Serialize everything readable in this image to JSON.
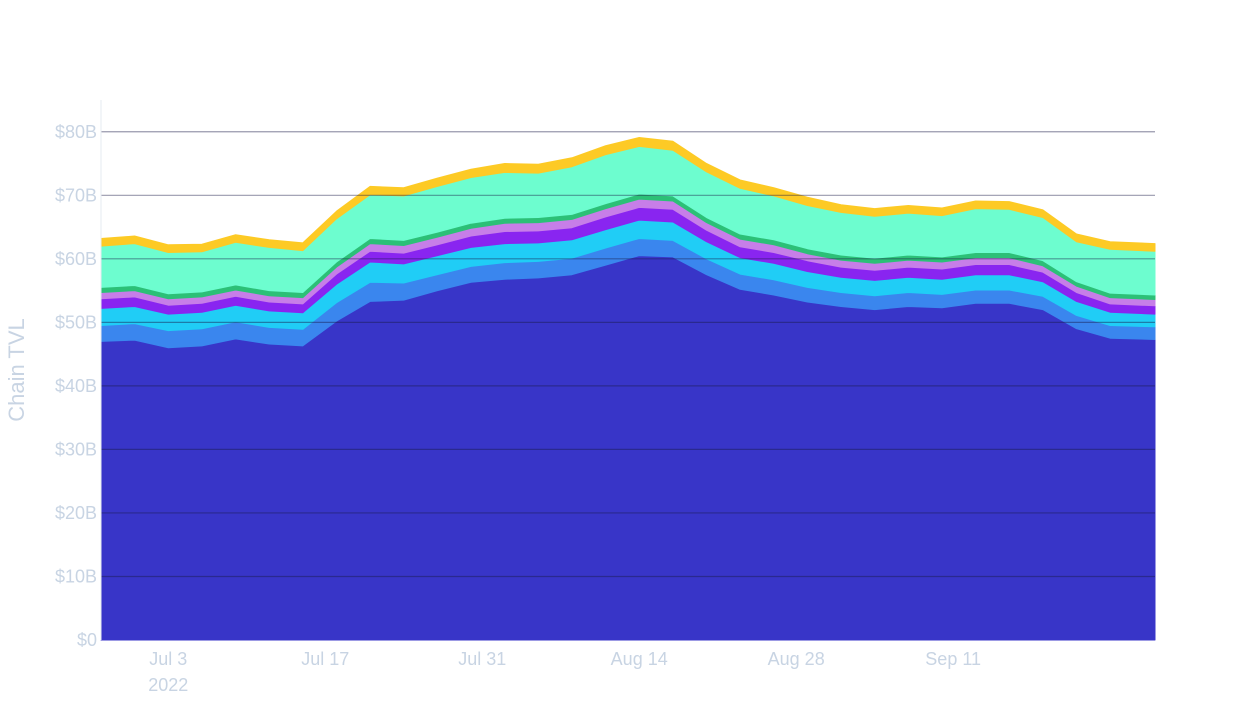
{
  "chart_data": {
    "type": "area",
    "stacked": true,
    "ylabel": "Chain TVL",
    "ylim": [
      0,
      85000000000
    ],
    "xlim": [
      "2022-06-27",
      "2022-09-29"
    ],
    "grid": true,
    "y_ticks": [
      {
        "value": 0,
        "label": "$0"
      },
      {
        "value": 10000000000,
        "label": "$10B"
      },
      {
        "value": 20000000000,
        "label": "$20B"
      },
      {
        "value": 30000000000,
        "label": "$30B"
      },
      {
        "value": 40000000000,
        "label": "$40B"
      },
      {
        "value": 50000000000,
        "label": "$50B"
      },
      {
        "value": 60000000000,
        "label": "$60B"
      },
      {
        "value": 70000000000,
        "label": "$70B"
      },
      {
        "value": 80000000000,
        "label": "$80B"
      }
    ],
    "x_ticks": [
      {
        "date": "2022-07-03",
        "label": "Jul 3",
        "sublabel": "2022"
      },
      {
        "date": "2022-07-17",
        "label": "Jul 17",
        "sublabel": ""
      },
      {
        "date": "2022-07-31",
        "label": "Jul 31",
        "sublabel": ""
      },
      {
        "date": "2022-08-14",
        "label": "Aug 14",
        "sublabel": ""
      },
      {
        "date": "2022-08-28",
        "label": "Aug 28",
        "sublabel": ""
      },
      {
        "date": "2022-09-11",
        "label": "Sep 11",
        "sublabel": ""
      }
    ],
    "x": [
      "2022-06-27",
      "2022-06-30",
      "2022-07-03",
      "2022-07-06",
      "2022-07-09",
      "2022-07-12",
      "2022-07-15",
      "2022-07-18",
      "2022-07-21",
      "2022-07-24",
      "2022-07-27",
      "2022-07-30",
      "2022-08-02",
      "2022-08-05",
      "2022-08-08",
      "2022-08-11",
      "2022-08-14",
      "2022-08-17",
      "2022-08-20",
      "2022-08-23",
      "2022-08-26",
      "2022-08-29",
      "2022-09-01",
      "2022-09-04",
      "2022-09-07",
      "2022-09-10",
      "2022-09-13",
      "2022-09-16",
      "2022-09-19",
      "2022-09-22",
      "2022-09-25",
      "2022-09-29"
    ],
    "series": [
      {
        "color": "#3835c8",
        "values": [
          47.0,
          47.2,
          46.0,
          46.3,
          47.4,
          46.6,
          46.3,
          50.2,
          53.3,
          53.5,
          55.0,
          56.3,
          56.8,
          57.0,
          57.5,
          59.0,
          60.5,
          60.3,
          57.5,
          55.2,
          54.3,
          53.2,
          52.5,
          52.0,
          52.5,
          52.3,
          53.0,
          53.0,
          52.0,
          49.0,
          47.5,
          47.3
        ]
      },
      {
        "color": "#3a86ee",
        "values": [
          2.5,
          2.6,
          2.7,
          2.7,
          2.7,
          2.6,
          2.6,
          2.9,
          3.0,
          2.7,
          2.5,
          2.5,
          2.6,
          2.6,
          2.6,
          2.7,
          2.7,
          2.6,
          2.5,
          2.4,
          2.4,
          2.3,
          2.2,
          2.2,
          2.2,
          2.1,
          2.1,
          2.1,
          2.1,
          2.1,
          2.0,
          2.0
        ]
      },
      {
        "color": "#20cdf6",
        "values": [
          2.7,
          2.7,
          2.6,
          2.6,
          2.6,
          2.6,
          2.6,
          2.9,
          3.2,
          3.0,
          3.0,
          3.0,
          3.0,
          2.9,
          2.9,
          2.9,
          2.9,
          2.9,
          2.7,
          2.6,
          2.6,
          2.5,
          2.4,
          2.4,
          2.4,
          2.4,
          2.4,
          2.4,
          2.3,
          2.2,
          2.1,
          2.0
        ]
      },
      {
        "color": "#8925f0",
        "values": [
          1.5,
          1.5,
          1.4,
          1.4,
          1.4,
          1.4,
          1.4,
          1.6,
          1.7,
          1.7,
          1.7,
          1.8,
          1.9,
          1.9,
          1.9,
          2.0,
          2.0,
          2.0,
          1.8,
          1.7,
          1.7,
          1.7,
          1.6,
          1.6,
          1.6,
          1.6,
          1.6,
          1.6,
          1.5,
          1.4,
          1.3,
          1.3
        ]
      },
      {
        "color": "#c77ee8",
        "values": [
          1.0,
          1.0,
          1.0,
          1.0,
          1.0,
          1.0,
          1.0,
          1.1,
          1.2,
          1.2,
          1.2,
          1.2,
          1.3,
          1.3,
          1.3,
          1.3,
          1.3,
          1.3,
          1.2,
          1.2,
          1.2,
          1.1,
          1.1,
          1.1,
          1.1,
          1.1,
          1.1,
          1.1,
          1.0,
          1.0,
          1.0,
          1.0
        ]
      },
      {
        "color": "#2cc077",
        "values": [
          0.8,
          0.8,
          0.8,
          0.8,
          0.8,
          0.8,
          0.8,
          0.8,
          0.8,
          0.8,
          0.8,
          0.8,
          0.8,
          0.8,
          0.8,
          0.8,
          0.8,
          0.8,
          0.8,
          0.8,
          0.8,
          0.8,
          0.8,
          0.8,
          0.8,
          0.8,
          0.8,
          0.8,
          0.8,
          0.7,
          0.7,
          0.7
        ]
      },
      {
        "color": "#6dfdcf",
        "values": [
          6.5,
          6.6,
          6.5,
          6.3,
          6.7,
          6.8,
          6.6,
          6.8,
          6.9,
          7.0,
          7.2,
          7.2,
          7.2,
          7.0,
          7.5,
          7.7,
          7.5,
          7.2,
          7.2,
          7.2,
          6.9,
          6.8,
          6.7,
          6.6,
          6.6,
          6.5,
          6.9,
          6.8,
          6.8,
          6.3,
          6.9,
          6.9
        ]
      },
      {
        "color": "#fdca25",
        "values": [
          1.2,
          1.2,
          1.2,
          1.2,
          1.2,
          1.2,
          1.2,
          1.2,
          1.3,
          1.3,
          1.3,
          1.3,
          1.4,
          1.4,
          1.4,
          1.4,
          1.4,
          1.4,
          1.3,
          1.3,
          1.3,
          1.3,
          1.2,
          1.2,
          1.2,
          1.2,
          1.2,
          1.2,
          1.2,
          1.2,
          1.2,
          1.2
        ]
      }
    ]
  }
}
